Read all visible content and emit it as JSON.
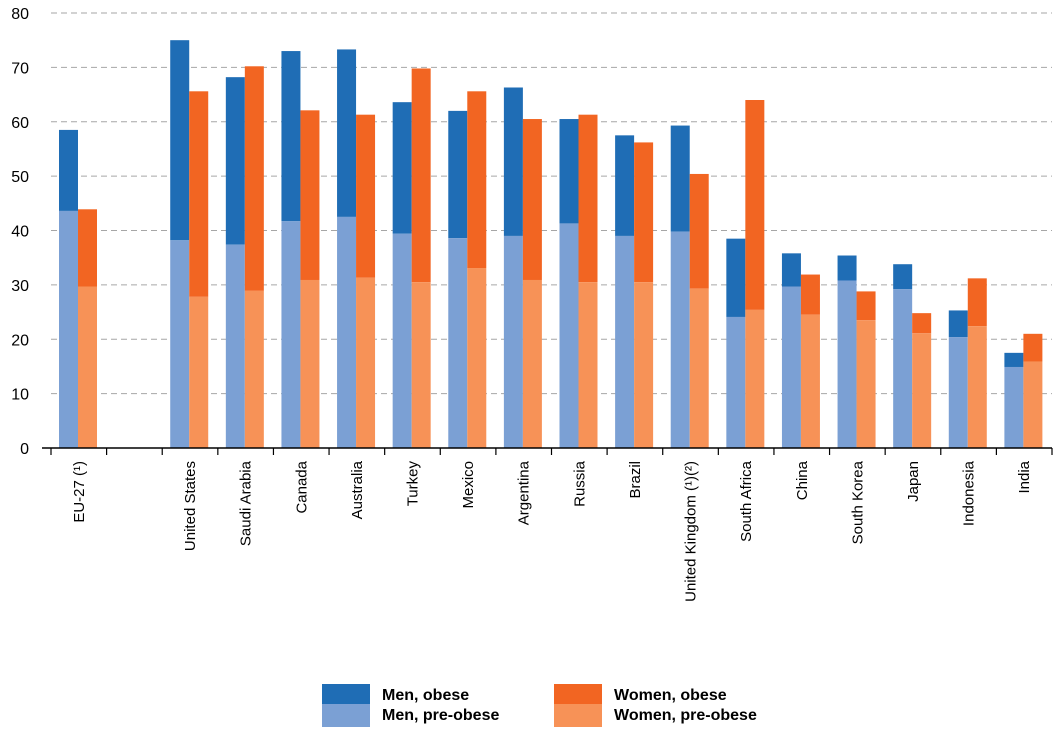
{
  "chart_data": {
    "type": "bar",
    "stacked": true,
    "title": "",
    "xlabel": "",
    "ylabel": "",
    "ylim": [
      0,
      80
    ],
    "yticks": [
      0,
      10,
      20,
      30,
      40,
      50,
      60,
      70,
      80
    ],
    "grid": "horizontal dashed",
    "legend_position": "bottom",
    "categories": [
      "EU-27 (¹)",
      "",
      "United States",
      "Saudi Arabia",
      "Canada",
      "Australia",
      "Turkey",
      "Mexico",
      "Argentina",
      "Russia",
      "Brazil",
      "United Kingdom (¹)(²)",
      "South Africa",
      "China",
      "South Korea",
      "Japan",
      "Indonesia",
      "India"
    ],
    "series": [
      {
        "name": "Men, obese",
        "color": "#1f6db5",
        "group": "men",
        "layer": "total",
        "values": [
          58.5,
          null,
          75.0,
          68.2,
          73.0,
          73.3,
          63.6,
          62.0,
          66.3,
          60.5,
          57.5,
          59.3,
          38.5,
          35.8,
          35.4,
          33.8,
          25.3,
          17.5
        ]
      },
      {
        "name": "Men, pre-obese",
        "color": "#7ba0d4",
        "group": "men",
        "layer": "base",
        "values": [
          43.6,
          null,
          38.2,
          37.4,
          41.7,
          42.5,
          39.4,
          38.6,
          39.0,
          41.3,
          39.0,
          39.8,
          24.1,
          29.7,
          30.8,
          29.2,
          20.4,
          14.9
        ]
      },
      {
        "name": "Women, obese",
        "color": "#f26522",
        "group": "women",
        "layer": "total",
        "values": [
          43.9,
          null,
          65.6,
          70.2,
          62.1,
          61.3,
          69.8,
          65.6,
          60.5,
          61.3,
          56.2,
          50.4,
          64.0,
          31.9,
          28.8,
          24.8,
          31.2,
          21.0
        ]
      },
      {
        "name": "Women, pre-obese",
        "color": "#f79257",
        "group": "women",
        "layer": "base",
        "values": [
          29.7,
          null,
          27.8,
          28.9,
          30.9,
          31.3,
          30.5,
          33.1,
          30.9,
          30.5,
          30.5,
          29.3,
          25.4,
          24.5,
          23.5,
          21.1,
          22.4,
          15.9
        ]
      }
    ]
  },
  "legend": [
    {
      "label": "Men, obese",
      "color": "#1f6db5"
    },
    {
      "label": "Women, obese",
      "color": "#f26522"
    },
    {
      "label": "Men, pre-obese",
      "color": "#7ba0d4"
    },
    {
      "label": "Women, pre-obese",
      "color": "#f79257"
    }
  ]
}
